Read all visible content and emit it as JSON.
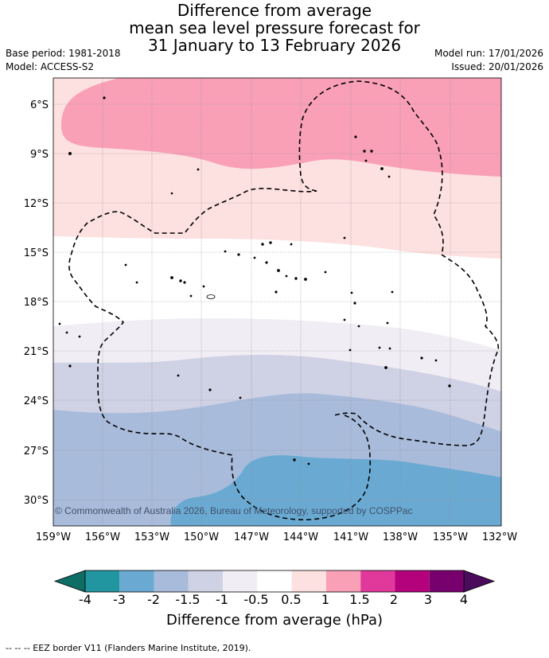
{
  "title": {
    "line1": "Difference from average",
    "line2": "mean sea level pressure forecast for",
    "line3": "31 January to 13 February 2026"
  },
  "meta": {
    "base_period": "Base period: 1981-2018",
    "model": "Model: ACCESS-S2",
    "model_run": "Model run: 17/01/2026",
    "issued": "Issued: 20/01/2026"
  },
  "map": {
    "lat_labels": [
      "6°S",
      "9°S",
      "12°S",
      "15°S",
      "18°S",
      "21°S",
      "24°S",
      "27°S",
      "30°S"
    ],
    "lon_labels": [
      "159°W",
      "156°W",
      "153°W",
      "150°W",
      "147°W",
      "144°W",
      "141°W",
      "138°W",
      "135°W",
      "132°W"
    ],
    "copyright": "© Commonwealth of Australia 2026, Bureau of Meteorology, supported by COSPPac"
  },
  "colorbar": {
    "ticks": [
      "-4",
      "-3",
      "-2",
      "-1.5",
      "-1",
      "-0.5",
      "0.5",
      "1",
      "1.5",
      "2",
      "3",
      "4"
    ],
    "colors": {
      "below": "#0e6e66",
      "bins": [
        "#2196a0",
        "#6aaad2",
        "#a9bbdb",
        "#cfd1e4",
        "#f1edf5",
        "#ffffff",
        "#fde0e0",
        "#f9a0b7",
        "#e0399b",
        "#b3027c",
        "#78006e"
      ],
      "above": "#4a0b5c"
    },
    "label": "Difference from average (hPa)"
  },
  "footnote": "--  --  -- EEZ border V11 (Flanders Marine Institute, 2019)."
}
